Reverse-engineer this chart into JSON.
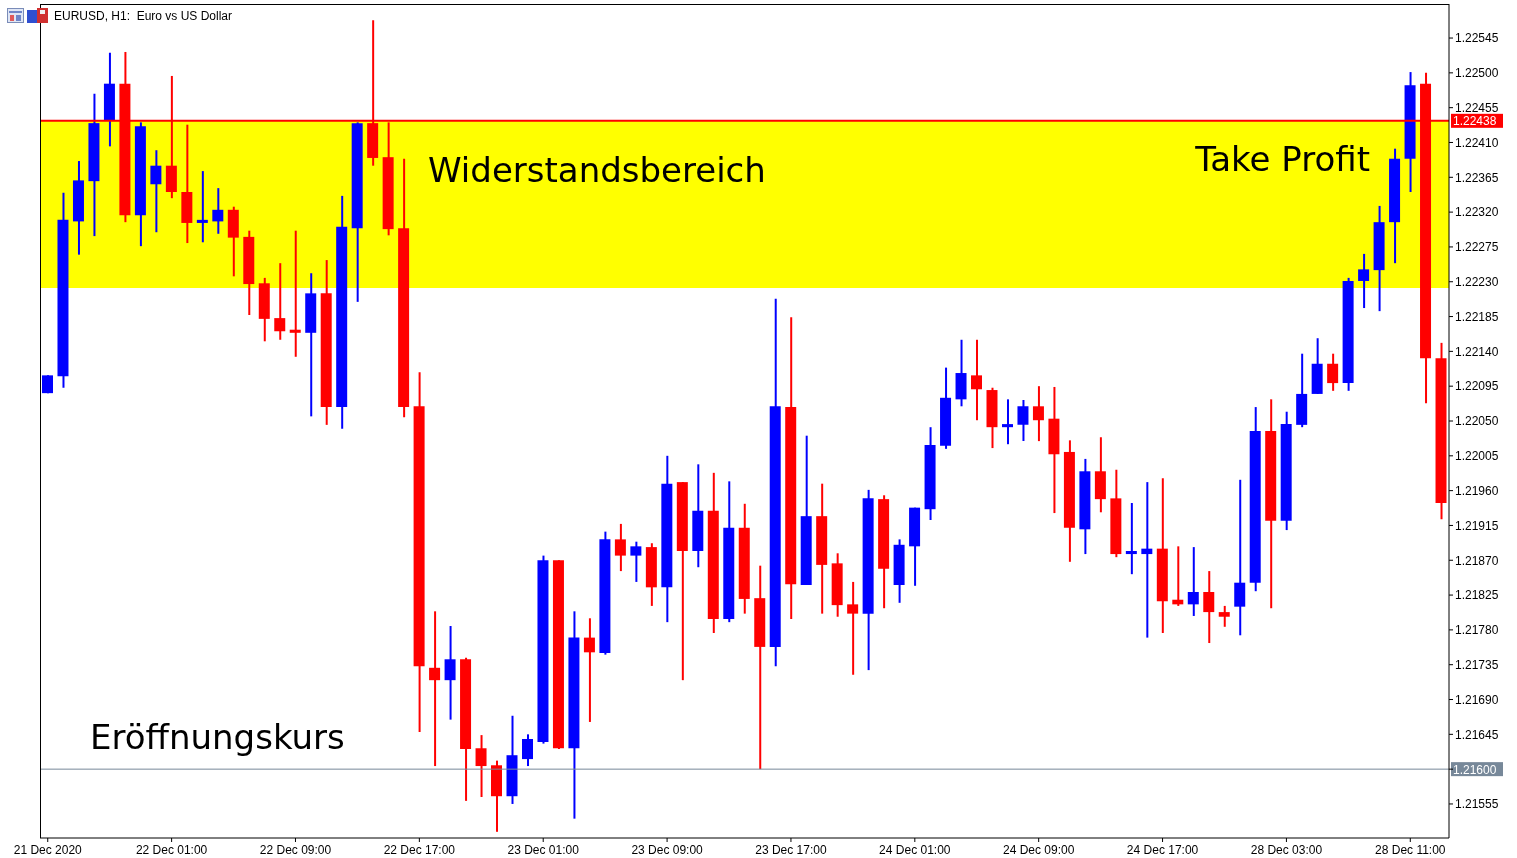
{
  "chart_data": {
    "type": "candlestick",
    "title": "EURUSD, H1:  Euro vs US Dollar",
    "categories": [
      "21 Dec 2020",
      null,
      null,
      null,
      null,
      null,
      null,
      null,
      "22 Dec 01:00",
      null,
      null,
      null,
      null,
      null,
      null,
      null,
      "22 Dec 09:00",
      null,
      null,
      null,
      null,
      null,
      null,
      null,
      "22 Dec 17:00",
      null,
      null,
      null,
      null,
      null,
      null,
      null,
      "23 Dec 01:00",
      null,
      null,
      null,
      null,
      null,
      null,
      null,
      "23 Dec 09:00",
      null,
      null,
      null,
      null,
      null,
      null,
      null,
      "23 Dec 17:00",
      null,
      null,
      null,
      null,
      null,
      null,
      null,
      "24 Dec 01:00",
      null,
      null,
      null,
      null,
      null,
      null,
      null,
      "24 Dec 09:00",
      null,
      null,
      null,
      null,
      null,
      null,
      null,
      "24 Dec 17:00",
      null,
      null,
      null,
      null,
      null,
      null,
      null,
      "28 Dec 03:00",
      null,
      null,
      null,
      null,
      null,
      null,
      null,
      "28 Dec 11:00",
      null,
      null
    ],
    "ohlc": [
      [
        1.22086,
        1.22109,
        1.22086,
        1.22109
      ],
      [
        1.22108,
        1.22345,
        1.22093,
        1.2231
      ],
      [
        1.22308,
        1.22386,
        1.22265,
        1.22361
      ],
      [
        1.2236,
        1.22473,
        1.22289,
        1.22435
      ],
      [
        1.22439,
        1.22526,
        1.22405,
        1.22486
      ],
      [
        1.22486,
        1.22527,
        1.22307,
        1.22316
      ],
      [
        1.22316,
        1.22436,
        1.22276,
        1.22431
      ],
      [
        1.22356,
        1.224,
        1.22294,
        1.2238
      ],
      [
        1.2238,
        1.22496,
        1.22338,
        1.22346
      ],
      [
        1.22346,
        1.22433,
        1.2228,
        1.22306
      ],
      [
        1.22306,
        1.22373,
        1.22281,
        1.2231
      ],
      [
        1.22308,
        1.22351,
        1.22292,
        1.22323
      ],
      [
        1.22323,
        1.22327,
        1.22237,
        1.22287
      ],
      [
        1.22288,
        1.22296,
        1.22187,
        1.22227
      ],
      [
        1.22228,
        1.22235,
        1.22153,
        1.22182
      ],
      [
        1.22183,
        1.22254,
        1.22155,
        1.22166
      ],
      [
        1.22168,
        1.22296,
        1.22133,
        1.22164
      ],
      [
        1.22164,
        1.22241,
        1.22056,
        1.22215
      ],
      [
        1.22215,
        1.22258,
        1.22045,
        1.22068
      ],
      [
        1.22068,
        1.22341,
        1.2204,
        1.22301
      ],
      [
        1.22299,
        1.22436,
        1.22204,
        1.22435
      ],
      [
        1.22435,
        1.22568,
        1.2238,
        1.2239
      ],
      [
        1.22391,
        1.22436,
        1.2229,
        1.22298
      ],
      [
        1.22299,
        1.22389,
        1.22055,
        1.22068
      ],
      [
        1.22069,
        1.22113,
        1.21648,
        1.21733
      ],
      [
        1.21731,
        1.21804,
        1.21604,
        1.21715
      ],
      [
        1.21715,
        1.21785,
        1.21664,
        1.21742
      ],
      [
        1.21742,
        1.21744,
        1.21559,
        1.21626
      ],
      [
        1.21627,
        1.21644,
        1.21564,
        1.21604
      ],
      [
        1.21605,
        1.21611,
        1.21519,
        1.21565
      ],
      [
        1.21565,
        1.21669,
        1.21555,
        1.21618
      ],
      [
        1.21613,
        1.21645,
        1.21604,
        1.21639
      ],
      [
        1.21635,
        1.21876,
        1.21633,
        1.2187
      ],
      [
        1.2187,
        1.2187,
        1.21626,
        1.21627
      ],
      [
        1.21627,
        1.21804,
        1.21536,
        1.2177
      ],
      [
        1.2177,
        1.21795,
        1.21661,
        1.21751
      ],
      [
        1.2175,
        1.21907,
        1.21748,
        1.21897
      ],
      [
        1.21897,
        1.21917,
        1.21856,
        1.21876
      ],
      [
        1.21876,
        1.21894,
        1.21842,
        1.21888
      ],
      [
        1.21887,
        1.21892,
        1.21811,
        1.21835
      ],
      [
        1.21835,
        1.22005,
        1.2179,
        1.21969
      ],
      [
        1.21971,
        1.21971,
        1.21715,
        1.21882
      ],
      [
        1.21882,
        1.21994,
        1.21861,
        1.21934
      ],
      [
        1.21934,
        1.21983,
        1.21776,
        1.21794
      ],
      [
        1.21794,
        1.21972,
        1.2179,
        1.21912
      ],
      [
        1.21912,
        1.21943,
        1.21801,
        1.2182
      ],
      [
        1.21821,
        1.21863,
        1.216,
        1.21758
      ],
      [
        1.21758,
        1.22208,
        1.21733,
        1.22069
      ],
      [
        1.22068,
        1.22184,
        1.21794,
        1.21839
      ],
      [
        1.21838,
        1.22031,
        1.21838,
        1.21927
      ],
      [
        1.21927,
        1.21969,
        1.21801,
        1.21864
      ],
      [
        1.21866,
        1.21879,
        1.21797,
        1.21812
      ],
      [
        1.21813,
        1.21842,
        1.21722,
        1.21801
      ],
      [
        1.21801,
        1.21961,
        1.21728,
        1.2195
      ],
      [
        1.21949,
        1.21954,
        1.21808,
        1.21859
      ],
      [
        1.21838,
        1.21897,
        1.21815,
        1.2189
      ],
      [
        1.21888,
        1.21938,
        1.21837,
        1.21938
      ],
      [
        1.21936,
        1.22042,
        1.21922,
        1.22019
      ],
      [
        1.22018,
        1.22119,
        1.22014,
        1.2208
      ],
      [
        1.22078,
        1.22155,
        1.22069,
        1.22112
      ],
      [
        1.22109,
        1.22155,
        1.22051,
        1.22091
      ],
      [
        1.2209,
        1.22093,
        1.22015,
        1.22042
      ],
      [
        1.22042,
        1.22078,
        1.2202,
        1.22046
      ],
      [
        1.22045,
        1.22077,
        1.22024,
        1.22069
      ],
      [
        1.22069,
        1.22095,
        1.22024,
        1.22051
      ],
      [
        1.22053,
        1.22094,
        1.21931,
        1.22007
      ],
      [
        1.2201,
        1.22025,
        1.21868,
        1.21912
      ],
      [
        1.2191,
        1.22001,
        1.21878,
        1.21985
      ],
      [
        1.21985,
        1.22029,
        1.21932,
        1.21949
      ],
      [
        1.2195,
        1.21987,
        1.21874,
        1.21878
      ],
      [
        1.21878,
        1.21944,
        1.21852,
        1.21882
      ],
      [
        1.21878,
        1.21971,
        1.2177,
        1.21885
      ],
      [
        1.21885,
        1.21976,
        1.21776,
        1.21817
      ],
      [
        1.21819,
        1.21888,
        1.21811,
        1.21813
      ],
      [
        1.21813,
        1.21887,
        1.21798,
        1.21829
      ],
      [
        1.21829,
        1.21856,
        1.21763,
        1.21803
      ],
      [
        1.21803,
        1.21811,
        1.21784,
        1.21797
      ],
      [
        1.2181,
        1.21974,
        1.21773,
        1.21841
      ],
      [
        1.21841,
        1.22068,
        1.2183,
        1.22037
      ],
      [
        1.22037,
        1.22078,
        1.21808,
        1.21921
      ],
      [
        1.21921,
        1.22062,
        1.21909,
        1.22046
      ],
      [
        1.22045,
        1.22137,
        1.22042,
        1.22085
      ],
      [
        1.22085,
        1.22157,
        1.22085,
        1.22124
      ],
      [
        1.22124,
        1.22137,
        1.22089,
        1.22099
      ],
      [
        1.22099,
        1.22235,
        1.22089,
        1.22231
      ],
      [
        1.22231,
        1.22266,
        1.22196,
        1.22246
      ],
      [
        1.22245,
        1.22328,
        1.22192,
        1.22307
      ],
      [
        1.22307,
        1.22402,
        1.22254,
        1.22389
      ],
      [
        1.22389,
        1.22501,
        1.22346,
        1.22484
      ],
      [
        1.22486,
        1.225,
        1.22073,
        1.22131
      ],
      [
        1.22131,
        1.22151,
        1.21923,
        1.21944
      ]
    ],
    "colors": [
      "#0000ff",
      "#0000ff",
      "#0000ff",
      "#0000ff",
      "#0000ff",
      "#ff0000",
      "#0000ff",
      "#0000ff",
      "#ff0000",
      "#ff0000",
      "#0000ff",
      "#0000ff",
      "#ff0000",
      "#ff0000",
      "#ff0000",
      "#ff0000",
      "#ff0000",
      "#0000ff",
      "#ff0000",
      "#0000ff",
      "#0000ff",
      "#ff0000",
      "#ff0000",
      "#ff0000",
      "#ff0000",
      "#ff0000",
      "#0000ff",
      "#ff0000",
      "#ff0000",
      "#ff0000",
      "#0000ff",
      "#0000ff",
      "#0000ff",
      "#ff0000",
      "#0000ff",
      "#ff0000",
      "#0000ff",
      "#ff0000",
      "#0000ff",
      "#ff0000",
      "#0000ff",
      "#ff0000",
      "#0000ff",
      "#ff0000",
      "#0000ff",
      "#ff0000",
      "#ff0000",
      "#0000ff",
      "#ff0000",
      "#0000ff",
      "#ff0000",
      "#ff0000",
      "#ff0000",
      "#0000ff",
      "#ff0000",
      "#0000ff",
      "#0000ff",
      "#0000ff",
      "#0000ff",
      "#0000ff",
      "#ff0000",
      "#ff0000",
      "#0000ff",
      "#0000ff",
      "#ff0000",
      "#ff0000",
      "#ff0000",
      "#0000ff",
      "#ff0000",
      "#ff0000",
      "#0000ff",
      "#0000ff",
      "#ff0000",
      "#ff0000",
      "#0000ff",
      "#ff0000",
      "#ff0000",
      "#0000ff",
      "#0000ff",
      "#ff0000",
      "#0000ff",
      "#0000ff",
      "#0000ff",
      "#ff0000",
      "#0000ff",
      "#0000ff",
      "#0000ff",
      "#0000ff",
      "#0000ff",
      "#ff0000",
      "#ff0000"
    ],
    "ylim": [
      1.21511,
      1.22589
    ],
    "yticks": [
      1.21555,
      {
        "value": 1.216,
        "label": null
      },
      1.21645,
      {
        "value": 1.2169,
        "label": "1.21690"
      },
      1.21735,
      {
        "value": 1.2178,
        "label": "1.21780"
      },
      1.21825,
      {
        "value": 1.2187,
        "label": "1.21870"
      },
      1.21915,
      {
        "value": 1.2196,
        "label": "1.21960"
      },
      1.22005,
      {
        "value": 1.2205,
        "label": "1.22050"
      },
      1.22095,
      {
        "value": 1.2214,
        "label": "1.22140"
      },
      1.22185,
      {
        "value": 1.2223,
        "label": "1.22230"
      },
      1.22275,
      {
        "value": 1.2232,
        "label": "1.22320"
      },
      1.22365,
      {
        "value": 1.2241,
        "label": "1.22410"
      },
      1.22455,
      {
        "value": 1.225,
        "label": "1.22500"
      },
      1.22545
    ],
    "ref_lines": [
      {
        "axis": "y",
        "value": 1.22438,
        "label": "1.22438",
        "color": "#ff0000"
      },
      {
        "axis": "y",
        "value": 1.216,
        "label": "1.21600",
        "color": "#778899"
      }
    ],
    "bands": [
      {
        "axis": "y",
        "from": 1.22222,
        "to": 1.22438,
        "label": "Widerstandsbereich",
        "color": "#ffff00"
      }
    ],
    "annotations": [
      {
        "text": "Take Profit",
        "y": 1.22438
      },
      {
        "text": "Eröffnungskurs",
        "y": 1.216
      }
    ]
  }
}
